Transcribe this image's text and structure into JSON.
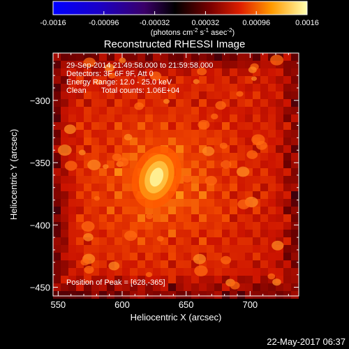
{
  "colorbar": {
    "ticks": [
      "-0.0016",
      "-0.00096",
      "-0.00032",
      "0.00032",
      "0.00096",
      "0.0016"
    ],
    "unit_main": "(photons cm",
    "unit_exp1": "-2",
    "unit_s": " s",
    "unit_exp2": "-1",
    "unit_asec": " asec",
    "unit_exp3": "-2",
    "unit_close": ")",
    "min": -0.0016,
    "max": 0.0016
  },
  "chart_data": {
    "type": "heatmap",
    "title": "Reconstructed RHESSI Image",
    "xlabel": "Heliocentric X (arcsec)",
    "ylabel": "Heliocentric Y (arcsec)",
    "xlim": [
      546,
      738
    ],
    "ylim": [
      -457,
      -262
    ],
    "x_ticks": [
      {
        "value": 550,
        "label": "550"
      },
      {
        "value": 600,
        "label": "600"
      },
      {
        "value": 650,
        "label": "650"
      },
      {
        "value": 700,
        "label": "700"
      }
    ],
    "y_ticks": [
      {
        "value": -300,
        "label": "−300"
      },
      {
        "value": -350,
        "label": "−350"
      },
      {
        "value": -400,
        "label": "−400"
      },
      {
        "value": -450,
        "label": "−450"
      }
    ],
    "peak": {
      "x": 628,
      "y": -365
    },
    "annotations": {
      "time": "29-Sep-2014 21:49:58.000 to 21:59:58.000",
      "detectors": "Detectors: 3F 6F 9F, Att 0",
      "energy": "Energy Range: 12.0 - 25.0 keV",
      "clean_label": "Clean",
      "counts": "Total counts: 1.06E+04",
      "peak_label": "Position of Peak = [628,-365]"
    }
  },
  "footer": {
    "date": "22-May-2017 06:37"
  },
  "colors": {
    "background": "#000000",
    "text": "#ffffff"
  }
}
